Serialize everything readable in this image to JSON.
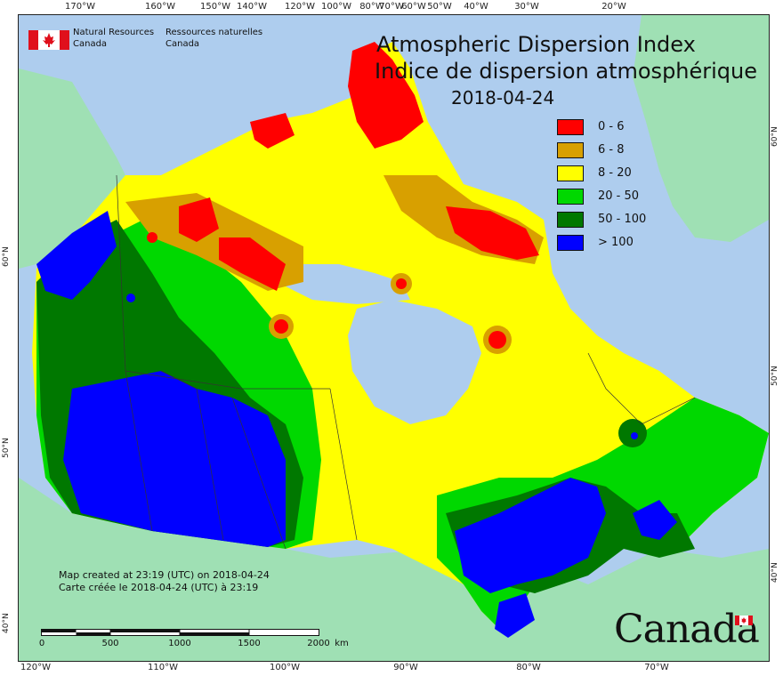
{
  "map": {
    "title_en": "Atmospheric Dispersion Index",
    "title_fr": "Indice de dispersion atmosphérique",
    "date": "2018-04-24",
    "agency_en_line1": "Natural Resources",
    "agency_en_line2": "Canada",
    "agency_fr_line1": "Ressources naturelles",
    "agency_fr_line2": "Canada",
    "wordmark": "Canada",
    "created_en": "Map created at 23:19 (UTC) on 2018-04-24",
    "created_fr": "Carte créée le 2018-04-24 (UTC) à 23:19",
    "scale": {
      "labels": [
        "0",
        "500",
        "1000",
        "1500",
        "2000"
      ],
      "unit": "km"
    },
    "longitude_ticks_top": [
      "170°W",
      "160°W",
      "150°W",
      "140°W",
      "120°W",
      "100°W",
      "80°W",
      "70°W",
      "60°W",
      "50°W",
      "40°W",
      "30°W",
      "20°W"
    ],
    "longitude_ticks_bottom": [
      "120°W",
      "110°W",
      "100°W",
      "90°W",
      "80°W",
      "70°W"
    ],
    "latitude_ticks_left": [
      "60°N",
      "50°N",
      "40°N"
    ],
    "latitude_ticks_right": [
      "60°N",
      "50°N",
      "40°N"
    ],
    "legend": [
      {
        "label": "0 - 6",
        "color": "#ff0000"
      },
      {
        "label": "6 - 8",
        "color": "#d8a000"
      },
      {
        "label": "8 - 20",
        "color": "#ffff00"
      },
      {
        "label": "20 - 50",
        "color": "#00d800"
      },
      {
        "label": "50 - 100",
        "color": "#007800"
      },
      {
        "label": "> 100",
        "color": "#0000ff"
      }
    ],
    "colors": {
      "ocean": "#aecdee",
      "foreign_land": "#9fe0b4",
      "canada_flag_red": "#e0101c"
    }
  }
}
